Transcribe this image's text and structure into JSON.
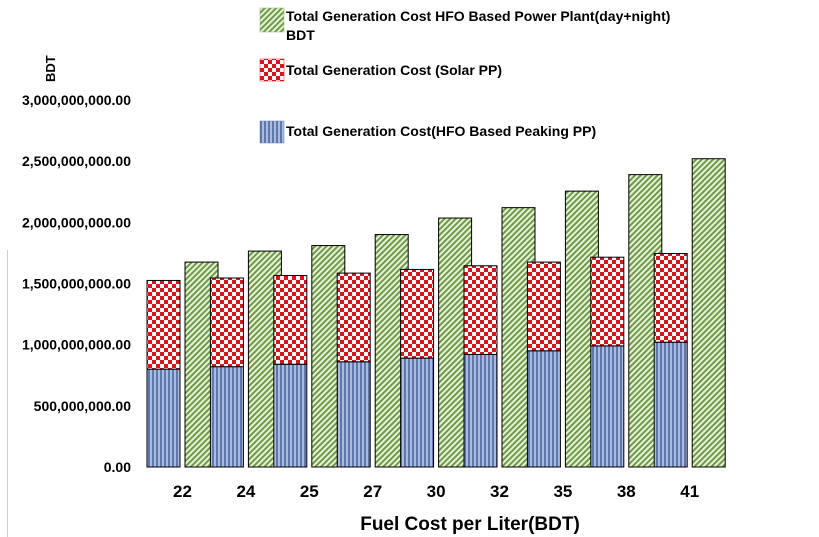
{
  "chart_data": {
    "type": "bar",
    "ylabel": "BDT",
    "xlabel": "Fuel Cost per Liter(BDT)",
    "categories": [
      "22",
      "24",
      "25",
      "27",
      "30",
      "32",
      "35",
      "38",
      "41"
    ],
    "ylim": [
      0,
      3000000000
    ],
    "yticks": [
      {
        "value": 0,
        "label": "0.00"
      },
      {
        "value": 500000000,
        "label": "500,000,000.00"
      },
      {
        "value": 1000000000,
        "label": "1,000,000,000.00"
      },
      {
        "value": 1500000000,
        "label": "1,500,000,000.00"
      },
      {
        "value": 2000000000,
        "label": "2,000,000,000.00"
      },
      {
        "value": 2500000000,
        "label": "2,500,000,000.00"
      },
      {
        "value": 3000000000,
        "label": "3,000,000,000.00"
      }
    ],
    "grid": false,
    "legend_position": "top-right",
    "stacked_series": [
      {
        "name": "Total Generation Cost(HFO Based Peaking PP)",
        "color": "#7f97c4",
        "pattern": "vertical-stripes",
        "values": [
          800000000,
          820000000,
          840000000,
          860000000,
          890000000,
          920000000,
          950000000,
          990000000,
          1020000000
        ]
      },
      {
        "name": "Total Generation Cost (Solar PP)",
        "color": "#d9141c",
        "pattern": "checkerboard",
        "values": [
          725000000,
          725000000,
          725000000,
          725000000,
          725000000,
          725000000,
          725000000,
          725000000,
          725000000
        ]
      }
    ],
    "series": [
      {
        "name": "Total Generation Cost HFO Based Power Plant(day+night) BDT",
        "color": "#8cb46a",
        "pattern": "diagonal-stripes",
        "values": [
          1675000000,
          1765000000,
          1810000000,
          1900000000,
          2035000000,
          2120000000,
          2255000000,
          2390000000,
          2520000000
        ]
      }
    ],
    "legend": [
      {
        "series": "Total Generation Cost HFO Based Power Plant(day+night) BDT",
        "line1": "Total Generation Cost HFO Based Power Plant(day+night)",
        "line2": "BDT"
      },
      {
        "series": "Total Generation Cost (Solar PP)",
        "line1": "Total Generation Cost (Solar PP)",
        "line2": ""
      },
      {
        "series": "Total Generation Cost(HFO Based Peaking PP)",
        "line1": "Total Generation Cost(HFO Based Peaking PP)",
        "line2": ""
      }
    ]
  }
}
